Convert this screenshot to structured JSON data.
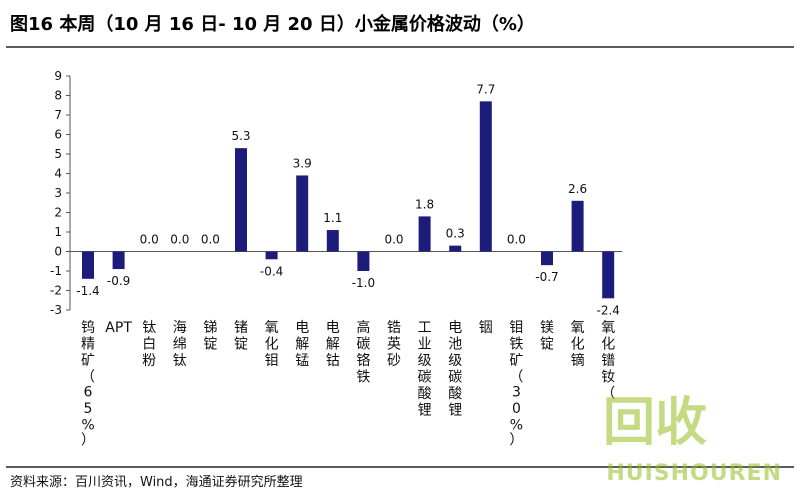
{
  "title": "图16 本周（10 月 16 日- 10 月 20 日）小金属价格波动（%）",
  "source": "资料来源：百川资讯，Wind，海通证券研究所整理",
  "watermark": {
    "main": "回收",
    "sub": "HUISHOUREN"
  },
  "colors": {
    "bar": "#1c1c7a",
    "axis": "#555555"
  },
  "chart_data": {
    "type": "bar",
    "title": "",
    "xlabel": "",
    "ylabel": "",
    "ylim": [
      -3,
      9
    ],
    "yticks": [
      -3,
      -2,
      -1,
      0,
      1,
      2,
      3,
      4,
      5,
      6,
      7,
      8,
      9
    ],
    "grid": false,
    "categories": [
      "钨精矿（65%）",
      "APT",
      "钛白粉",
      "海绵钛",
      "锑锭",
      "锗锭",
      "氧化钼",
      "电解锰",
      "电解钴",
      "高碳铬铁",
      "锆英砂",
      "工业级碳酸锂",
      "电池级碳酸锂",
      "铟",
      "钼铁矿（30%）",
      "镁锭",
      "氧化镝",
      "氧化镨钕（"
    ],
    "values": [
      -1.4,
      -0.9,
      0.0,
      0.0,
      0.0,
      5.3,
      -0.4,
      3.9,
      1.1,
      -1.0,
      0.0,
      1.8,
      0.3,
      7.7,
      0.0,
      -0.7,
      2.6,
      -2.4
    ],
    "data_labels": [
      "-1.4",
      "-0.9",
      "0.0",
      "0.0",
      "0.0",
      "5.3",
      "-0.4",
      "3.9",
      "1.1",
      "-1.0",
      "0.0",
      "1.8",
      "0.3",
      "7.7",
      "0.0",
      "-0.7",
      "2.6",
      "-2.4"
    ]
  }
}
